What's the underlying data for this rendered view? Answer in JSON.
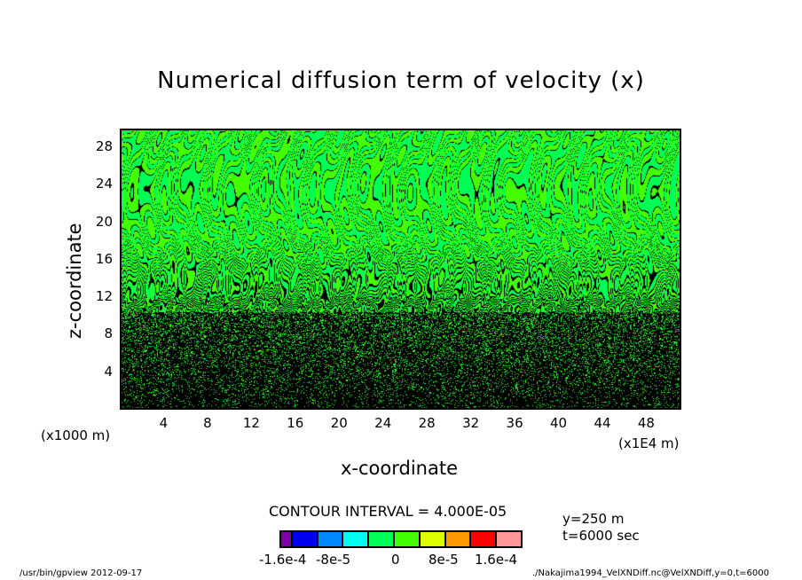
{
  "chart_data": {
    "type": "heatmap",
    "subtype": "filled contour",
    "title": "Numerical diffusion term of velocity (x)",
    "xlabel": "x-coordinate",
    "ylabel": "z-coordinate",
    "x_unit_left": "(x1000 m)",
    "x_unit_right": "(x1E4 m)",
    "xlim": [
      0,
      51.2
    ],
    "ylim": [
      0,
      30
    ],
    "xticks": [
      4,
      8,
      12,
      16,
      20,
      24,
      28,
      32,
      36,
      40,
      44,
      48
    ],
    "xtick_labels": [
      "4",
      "8",
      "12",
      "16",
      "20",
      "24",
      "28",
      "32",
      "36",
      "40",
      "44",
      "48"
    ],
    "yticks": [
      4,
      8,
      12,
      16,
      20,
      24,
      28
    ],
    "ytick_labels": [
      "4",
      "8",
      "12",
      "16",
      "20",
      "24",
      "28"
    ],
    "contour_interval": "CONTOUR INTERVAL = 4.000E-05",
    "contour_interval_value": 4e-05,
    "colorbar": {
      "levels": [
        -0.00016,
        -0.00012,
        -8e-05,
        -4e-05,
        0,
        4e-05,
        8e-05,
        0.00012,
        0.00016
      ],
      "colors": [
        "#7f00a8",
        "#0000ee",
        "#0088ff",
        "#00ffee",
        "#00ff55",
        "#44ff00",
        "#ddff00",
        "#ff9900",
        "#ff0000",
        "#ff9999"
      ],
      "tick_labels": [
        "-1.6e-4",
        "-8e-5",
        "0",
        "8e-5",
        "1.6e-4"
      ]
    },
    "field_description": "Values near zero across domain: alternating bands of contour levels 0 to +4e-5 (green #00ff55 / lime #44ff00) with dense black contour lines; contour density increases sharply below z≈18, becoming nearly solid black below z≈12",
    "dominant_colors": {
      "band_low": "#00ff55",
      "band_high": "#44ff00",
      "contour_line": "#000000"
    }
  },
  "annotations": {
    "y_section": "y=250 m",
    "time": "t=6000 sec"
  },
  "footer": {
    "left": "/usr/bin/gpview   2012-09-17",
    "right": "./Nakajima1994_VelXNDiff.nc@VelXNDiff,y=0,t=6000"
  }
}
